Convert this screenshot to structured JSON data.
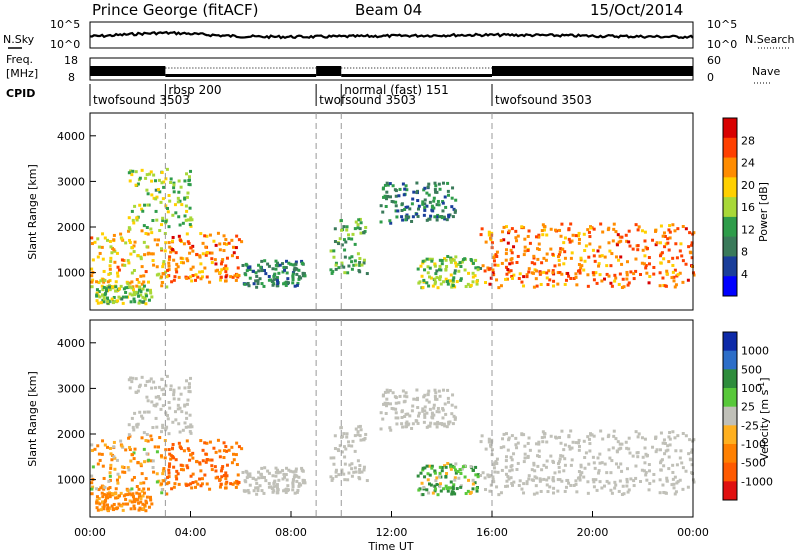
{
  "header": {
    "station": "Prince George (fitACF)",
    "beam": "Beam 04",
    "date": "15/Oct/2014"
  },
  "top_panels": {
    "nsky_label": "N.Sky",
    "nsearch_label": "N.Search",
    "freq_label_1": "Freq.",
    "freq_label_2": "[MHz]",
    "nave_label": "Nave",
    "cpid_label": "CPID",
    "noise_ticks_left": [
      "10^5",
      "10^0"
    ],
    "noise_ticks_right": [
      "10^5",
      "10^0"
    ],
    "freq_ticks": [
      "18",
      "8"
    ],
    "nave_ticks": [
      "60",
      "0"
    ]
  },
  "cpid_segments": [
    {
      "label": "twofsound 3503",
      "start_hour": 0
    },
    {
      "label": "rbsp 200",
      "start_hour": 3.0
    },
    {
      "label": "twofsound 3503",
      "start_hour": 9.0
    },
    {
      "label": "normal (fast) 151",
      "start_hour": 10.0
    },
    {
      "label": "twofsound 3503",
      "start_hour": 16.0
    }
  ],
  "power_panel": {
    "ylabel": "Slant Range [km]",
    "yticks": [
      "4000",
      "3000",
      "2000",
      "1000"
    ],
    "colorbar_label": "Power [dB]",
    "colorbar_ticks": [
      "28",
      "24",
      "20",
      "16",
      "12",
      "8",
      "4"
    ]
  },
  "velocity_panel": {
    "ylabel": "Slant Range [km]",
    "yticks": [
      "4000",
      "3000",
      "2000",
      "1000"
    ],
    "colorbar_label": "Velocity [m s",
    "colorbar_sup": "-1",
    "colorbar_close": "]",
    "colorbar_ticks": [
      "1000",
      "500",
      "100",
      "25",
      "-25",
      "-100",
      "-500",
      "-1000"
    ]
  },
  "xaxis": {
    "label": "Time UT",
    "ticks": [
      "00:00",
      "04:00",
      "08:00",
      "12:00",
      "16:00",
      "20:00",
      "00:00"
    ]
  },
  "colors": {
    "power_scale": [
      "#d80000",
      "#ff4000",
      "#ff8c00",
      "#ffd000",
      "#a8d838",
      "#2e9c4a",
      "#3a7a5a",
      "#1a3e9a",
      "#0000ff"
    ],
    "velocity_scale": [
      "#0d2aa8",
      "#2d6ec8",
      "#2e8c3c",
      "#58c83a",
      "#c0c0b8",
      "#ffb020",
      "#ff8000",
      "#ff5a00",
      "#e01010"
    ],
    "ground_scatter": "#c0c0b8"
  },
  "chart_data": {
    "type": "heatmap",
    "x_range_hours": [
      0,
      24
    ],
    "y_range_km": [
      180,
      4500
    ],
    "note_regions": [
      {
        "t0": 0.0,
        "t1": 3.0,
        "r0": 700,
        "r1": 2000,
        "power": 20,
        "velocity": -100
      },
      {
        "t0": 0.2,
        "t1": 2.5,
        "r0": 350,
        "r1": 750,
        "power": 14,
        "velocity": -200
      },
      {
        "t0": 3.0,
        "t1": 6.0,
        "r0": 800,
        "r1": 1900,
        "power": 24,
        "velocity": -500
      },
      {
        "t0": 1.5,
        "t1": 4.0,
        "r0": 2000,
        "r1": 3300,
        "power": 14,
        "velocity": 0
      },
      {
        "t0": 6.0,
        "t1": 8.5,
        "r0": 700,
        "r1": 1300,
        "power": 8,
        "velocity": 0
      },
      {
        "t0": 9.5,
        "t1": 11.0,
        "r0": 1000,
        "r1": 2200,
        "power": 12,
        "velocity": 0
      },
      {
        "t0": 11.5,
        "t1": 14.5,
        "r0": 2100,
        "r1": 3000,
        "power": 8,
        "velocity": 0
      },
      {
        "t0": 13.0,
        "t1": 15.5,
        "r0": 700,
        "r1": 1400,
        "power": 14,
        "velocity": 100
      },
      {
        "t0": 15.5,
        "t1": 24.0,
        "r0": 700,
        "r1": 2100,
        "power": 24,
        "velocity": 0
      }
    ]
  }
}
